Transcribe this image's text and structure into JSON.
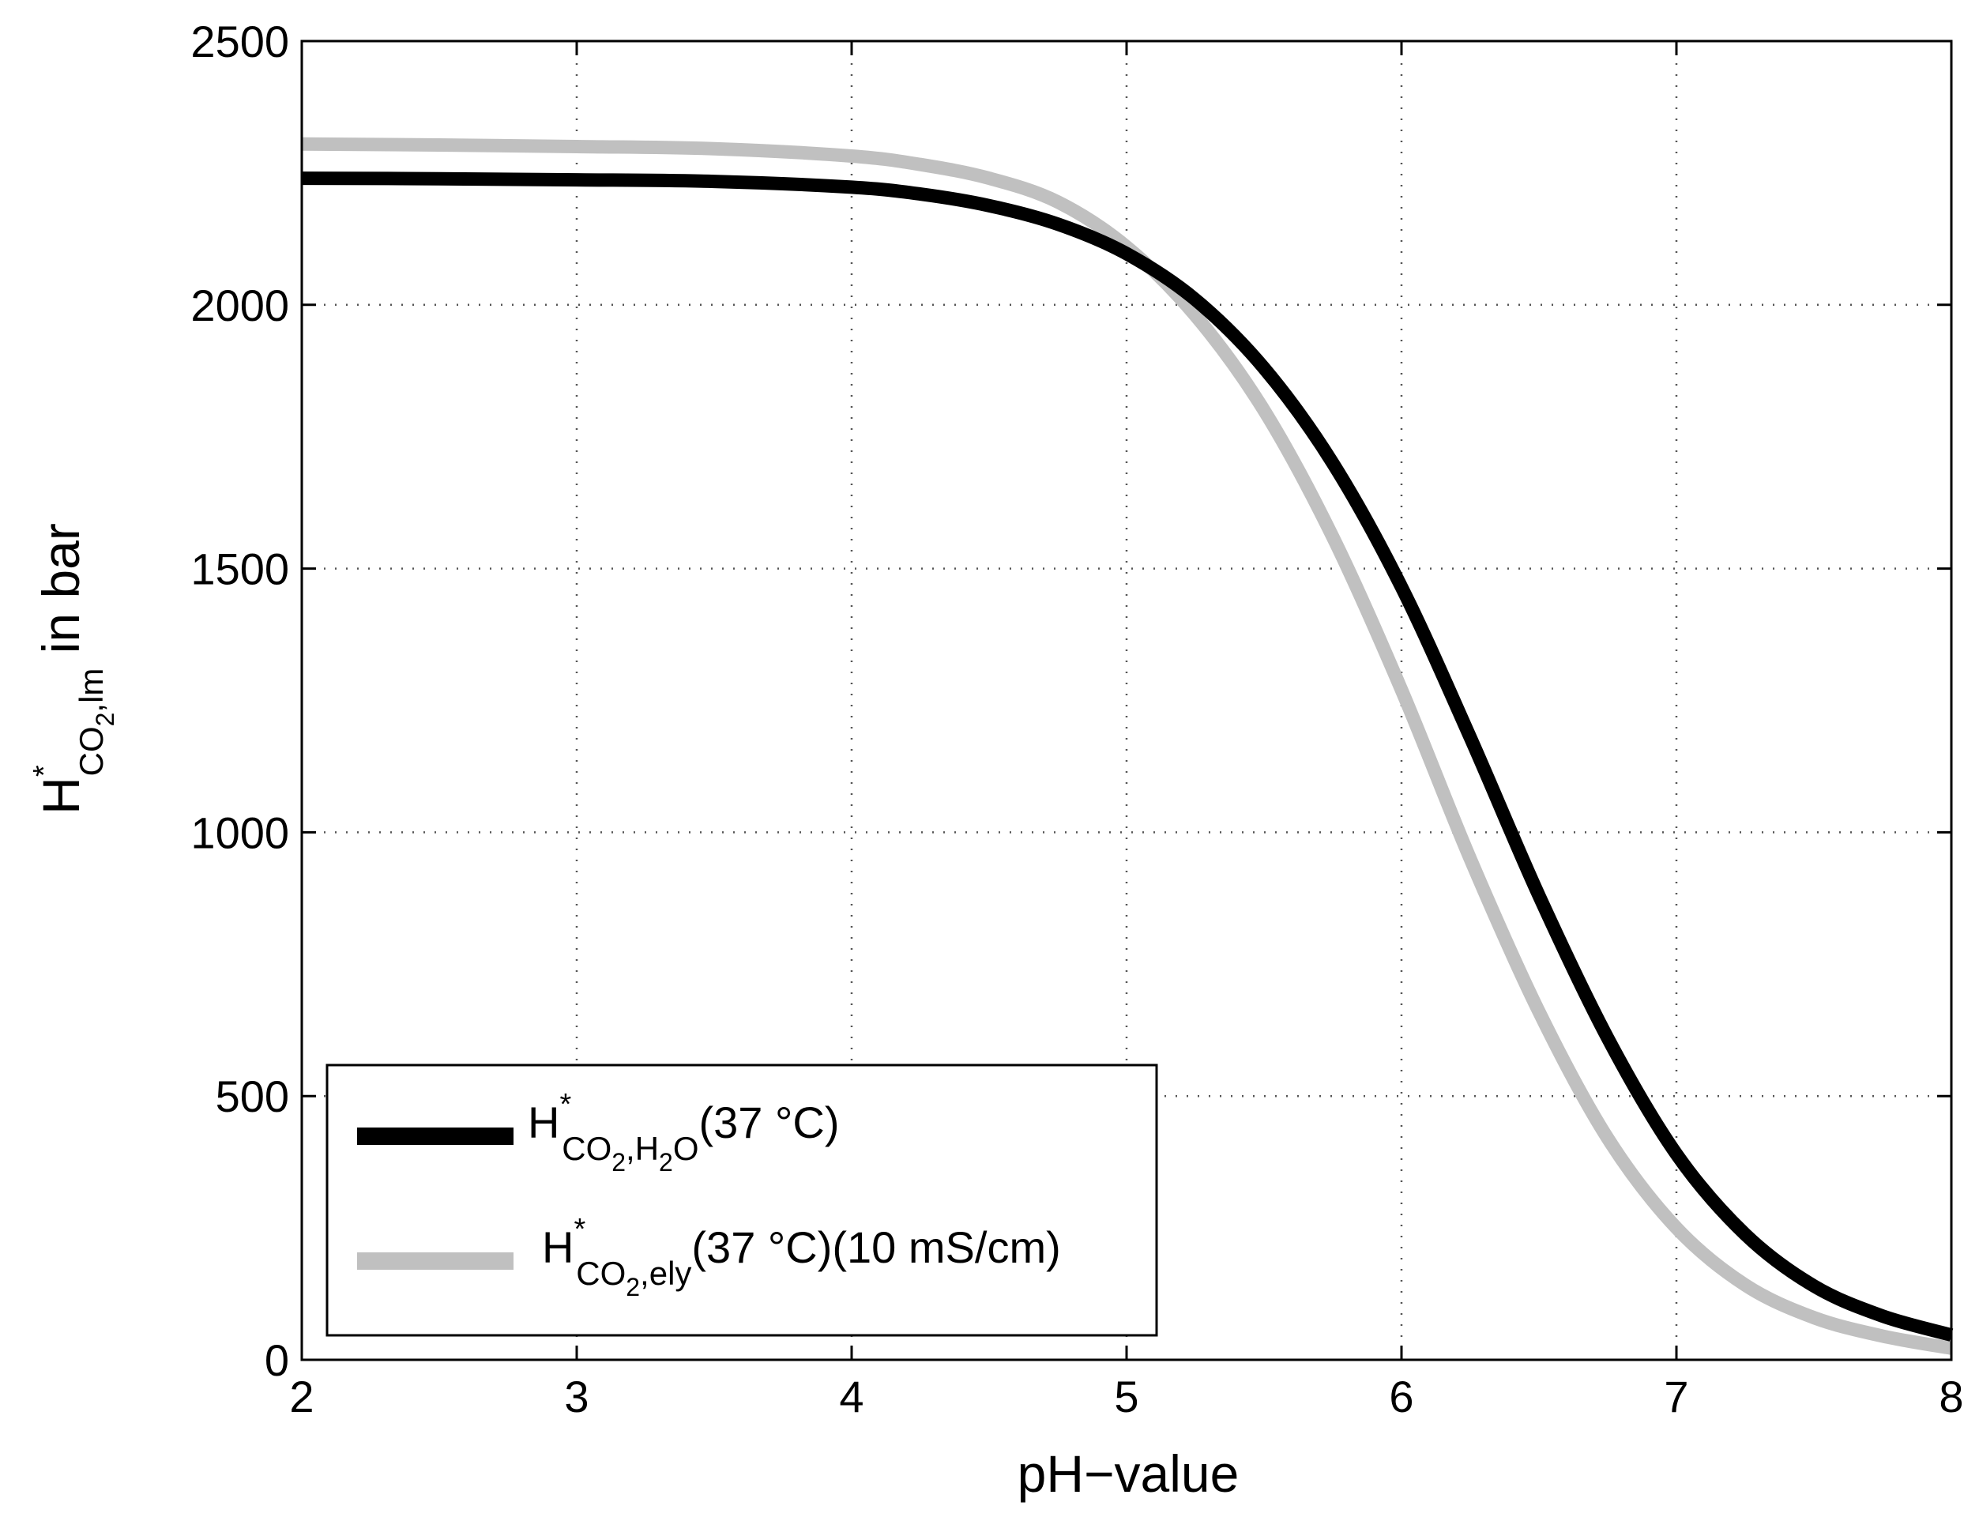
{
  "chart_data": {
    "type": "line",
    "title": "",
    "xlabel": "pH−value",
    "ylabel": {
      "main": "H",
      "star": "*",
      "sub_a": "CO",
      "sub_2": "2",
      "sub_b": ",lm",
      "suffix": " in bar"
    },
    "xlim": [
      2,
      8
    ],
    "ylim": [
      0,
      2500
    ],
    "xticks": [
      2,
      3,
      4,
      5,
      6,
      7,
      8
    ],
    "yticks": [
      0,
      500,
      1000,
      1500,
      2000,
      2500
    ],
    "xtick_labels": [
      "2",
      "3",
      "4",
      "5",
      "6",
      "7",
      "8"
    ],
    "ytick_labels": [
      "0",
      "500",
      "1000",
      "1500",
      "2000",
      "2500"
    ],
    "grid": true,
    "legend_position": "bottom-left",
    "series": [
      {
        "name": "H*CO2,H2O(37 °C)",
        "color": "#000000",
        "legend": {
          "main": "H",
          "star": "*",
          "sub_a": "CO",
          "sub_2": "2",
          "sub_b": ",H",
          "sub_c": "2",
          "sub_d": "O",
          "suffix": "(37 °C)"
        },
        "x": [
          2.0,
          2.5,
          3.0,
          3.5,
          4.0,
          4.25,
          4.5,
          4.75,
          5.0,
          5.25,
          5.5,
          5.75,
          6.0,
          6.25,
          6.5,
          6.75,
          7.0,
          7.25,
          7.5,
          7.75,
          8.0
        ],
        "y": [
          2240,
          2239,
          2237,
          2234,
          2223,
          2210,
          2188,
          2153,
          2097,
          2010,
          1880,
          1700,
          1465,
          1180,
          880,
          610,
          390,
          238,
          140,
          83,
          47
        ]
      },
      {
        "name": "H*CO2,ely(37 °C)(10 mS/cm)",
        "color": "#c0c0c0",
        "legend": {
          "main": "H",
          "star": "*",
          "sub_a": "CO",
          "sub_2": "2",
          "sub_b": ",ely",
          "suffix": "(37 °C)(10 mS/cm)"
        },
        "x": [
          2.0,
          2.5,
          3.0,
          3.5,
          4.0,
          4.25,
          4.5,
          4.75,
          5.0,
          5.25,
          5.5,
          5.75,
          6.0,
          6.25,
          6.5,
          6.75,
          7.0,
          7.25,
          7.5,
          7.75,
          8.0
        ],
        "y": [
          2305,
          2303,
          2300,
          2296,
          2282,
          2266,
          2240,
          2195,
          2110,
          1980,
          1800,
          1560,
          1270,
          950,
          660,
          420,
          250,
          142,
          80,
          45,
          22
        ]
      }
    ]
  }
}
